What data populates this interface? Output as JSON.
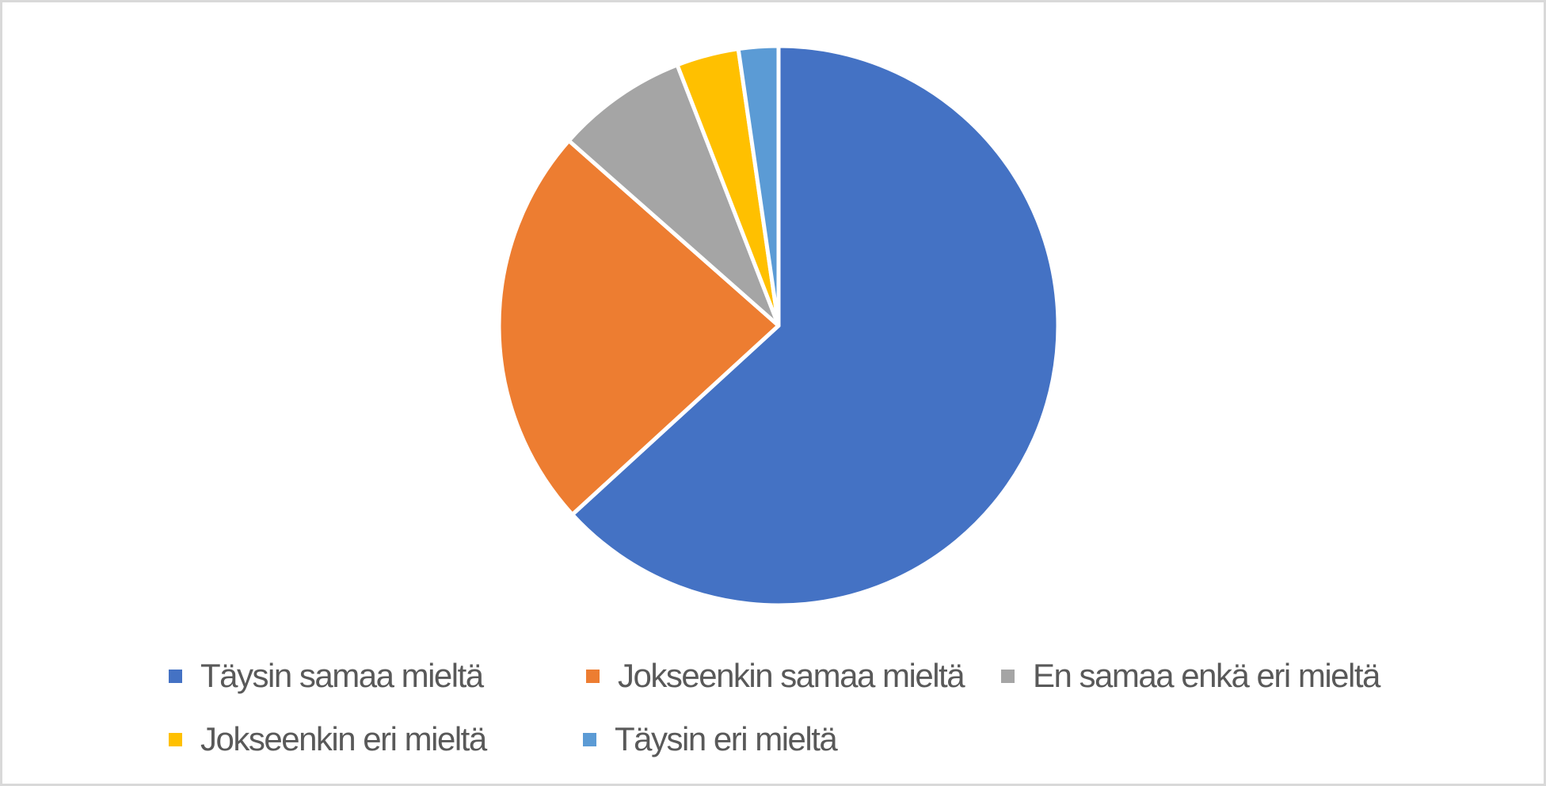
{
  "frame": {
    "background_color": "#FFFFFF",
    "border_color": "#D9D9D9",
    "legend_text_color": "#595959"
  },
  "chart_data": {
    "type": "pie",
    "title": "",
    "categories": [
      "Täysin samaa mieltä",
      "Jokseenkin samaa mieltä",
      "En samaa enkä eri mieltä",
      "Jokseenkin eri mieltä",
      "Täysin eri mieltä"
    ],
    "values": [
      63.2,
      23.3,
      7.6,
      3.6,
      2.3
    ],
    "unit": "percent",
    "colors": [
      "#4472C4",
      "#ED7D31",
      "#A5A5A5",
      "#FFC000",
      "#5B9BD5"
    ],
    "start_angle_deg": 0,
    "direction": "clockwise",
    "slice_gap_color": "#FFFFFF",
    "legend_position": "bottom",
    "legend_rows": [
      [
        0,
        1,
        2
      ],
      [
        3,
        4
      ]
    ],
    "grid": false,
    "data_labels": false
  }
}
